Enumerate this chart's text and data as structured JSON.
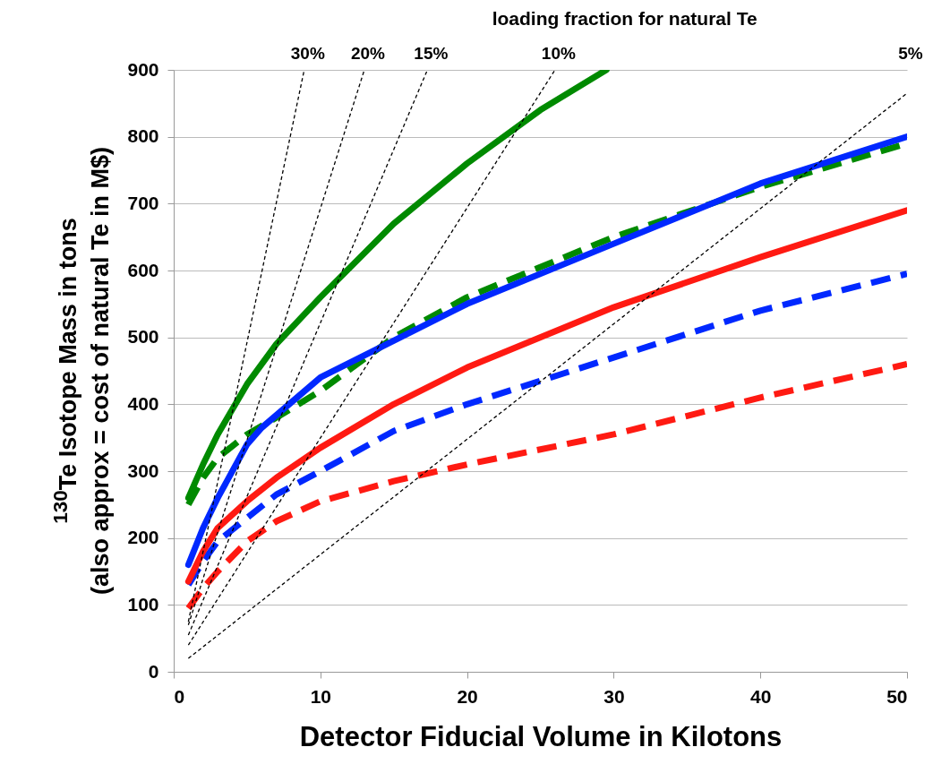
{
  "chart_data": {
    "type": "line",
    "xlabel": "Detector Fiducial Volume in Kilotons",
    "ylabel": "$^{130}$Te Isotope Mass in tons\n(also approx = cost of natural Te in M$)",
    "annotations": [
      "loading fraction for natural Te"
    ],
    "xlim": [
      0,
      50
    ],
    "ylim": [
      0,
      900
    ],
    "xticks": [
      0,
      10,
      20,
      30,
      40,
      50
    ],
    "yticks": [
      0,
      100,
      200,
      300,
      400,
      500,
      600,
      700,
      800,
      900
    ],
    "grid": "y",
    "marker": "none",
    "series": [
      {
        "color": "#008a00",
        "line_style": "solid",
        "x": [
          1,
          2,
          3,
          5,
          7,
          10,
          15,
          20,
          25,
          29.5
        ],
        "values": [
          260,
          310,
          355,
          430,
          490,
          560,
          670,
          760,
          840,
          900
        ]
      },
      {
        "color": "#008a00",
        "line_style": "dashed",
        "x": [
          1,
          2,
          3,
          5,
          7,
          10,
          15,
          20,
          30,
          40,
          50
        ],
        "values": [
          250,
          290,
          320,
          355,
          380,
          420,
          500,
          560,
          650,
          725,
          790
        ]
      },
      {
        "color": "#0028ff",
        "line_style": "solid",
        "x": [
          1,
          2,
          3,
          5,
          6,
          10,
          15,
          20,
          30,
          40,
          50
        ],
        "values": [
          160,
          215,
          260,
          340,
          365,
          440,
          495,
          550,
          640,
          730,
          800
        ]
      },
      {
        "color": "#0028ff",
        "line_style": "dashed",
        "x": [
          1,
          2,
          3,
          5,
          7,
          10,
          15,
          20,
          30,
          40,
          50
        ],
        "values": [
          130,
          165,
          195,
          230,
          265,
          300,
          360,
          400,
          470,
          540,
          595
        ]
      },
      {
        "color": "#ff1a12",
        "line_style": "solid",
        "x": [
          1,
          2,
          3,
          5,
          7,
          10,
          15,
          20,
          30,
          40,
          50
        ],
        "values": [
          135,
          180,
          215,
          255,
          290,
          335,
          400,
          455,
          545,
          620,
          690
        ]
      },
      {
        "color": "#ff1a12",
        "line_style": "dashed",
        "x": [
          1,
          2,
          3,
          5,
          7,
          10,
          15,
          20,
          30,
          40,
          50
        ],
        "values": [
          95,
          125,
          150,
          195,
          225,
          255,
          285,
          310,
          355,
          410,
          460
        ]
      },
      {
        "name": "30%",
        "color": "#000000",
        "line_style": "dotted",
        "x": [
          1,
          8.9
        ],
        "values": [
          75,
          900
        ]
      },
      {
        "name": "20%",
        "color": "#000000",
        "line_style": "dotted",
        "x": [
          1,
          13
        ],
        "values": [
          70,
          900
        ]
      },
      {
        "name": "15%",
        "color": "#000000",
        "line_style": "dotted",
        "x": [
          1,
          17.3
        ],
        "values": [
          55,
          900
        ]
      },
      {
        "name": "10%",
        "color": "#000000",
        "line_style": "dotted",
        "x": [
          1,
          26
        ],
        "values": [
          40,
          900
        ]
      },
      {
        "name": "5%",
        "color": "#000000",
        "line_style": "dotted",
        "x": [
          1,
          50
        ],
        "values": [
          20,
          865
        ]
      }
    ]
  }
}
